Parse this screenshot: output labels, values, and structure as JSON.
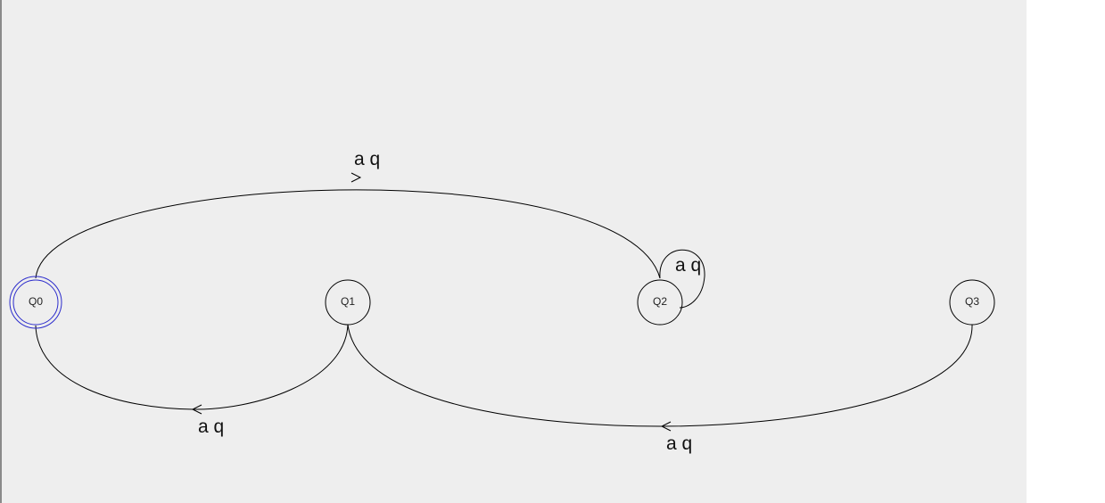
{
  "states": [
    {
      "id": "Q0",
      "label": "Q0",
      "accepting": true
    },
    {
      "id": "Q1",
      "label": "Q1",
      "accepting": false
    },
    {
      "id": "Q2",
      "label": "Q2",
      "accepting": false
    },
    {
      "id": "Q3",
      "label": "Q3",
      "accepting": false
    }
  ],
  "transitions": [
    {
      "from": "Q0",
      "to": "Q2",
      "label": "a q"
    },
    {
      "from": "Q2",
      "to": "Q2",
      "label": "a q"
    },
    {
      "from": "Q1",
      "to": "Q0",
      "label": "a q"
    },
    {
      "from": "Q3",
      "to": "Q1",
      "label": "a q"
    }
  ],
  "colors": {
    "background": "#eeeeee",
    "accepting_ring": "#2b2bcc",
    "stroke": "#000000"
  }
}
